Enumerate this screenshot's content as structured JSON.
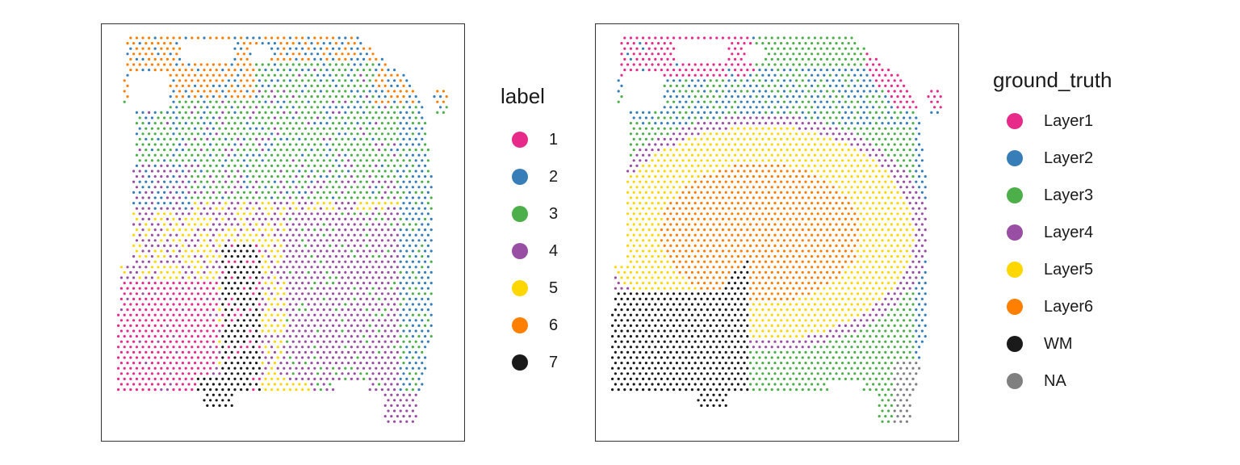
{
  "chart_data": [
    {
      "type": "scatter",
      "title": "",
      "xlabel": "",
      "ylabel": "",
      "grid": false,
      "legend_position": "right",
      "legend_title": "label",
      "categories": [
        {
          "name": "1",
          "color": "#E7298A"
        },
        {
          "name": "2",
          "color": "#377EB8"
        },
        {
          "name": "3",
          "color": "#4DAF4A"
        },
        {
          "name": "4",
          "color": "#984EA3"
        },
        {
          "name": "5",
          "color": "#FFD700"
        },
        {
          "name": "6",
          "color": "#FF7F00"
        },
        {
          "name": "7",
          "color": "#1A1A1A"
        }
      ]
    },
    {
      "type": "scatter",
      "title": "",
      "xlabel": "",
      "ylabel": "",
      "grid": false,
      "legend_position": "right",
      "legend_title": "ground_truth",
      "categories": [
        {
          "name": "Layer1",
          "color": "#E7298A"
        },
        {
          "name": "Layer2",
          "color": "#377EB8"
        },
        {
          "name": "Layer3",
          "color": "#4DAF4A"
        },
        {
          "name": "Layer4",
          "color": "#984EA3"
        },
        {
          "name": "Layer5",
          "color": "#FFD700"
        },
        {
          "name": "Layer6",
          "color": "#FF7F00"
        },
        {
          "name": "WM",
          "color": "#1A1A1A"
        },
        {
          "name": "NA",
          "color": "#808080"
        }
      ]
    }
  ]
}
